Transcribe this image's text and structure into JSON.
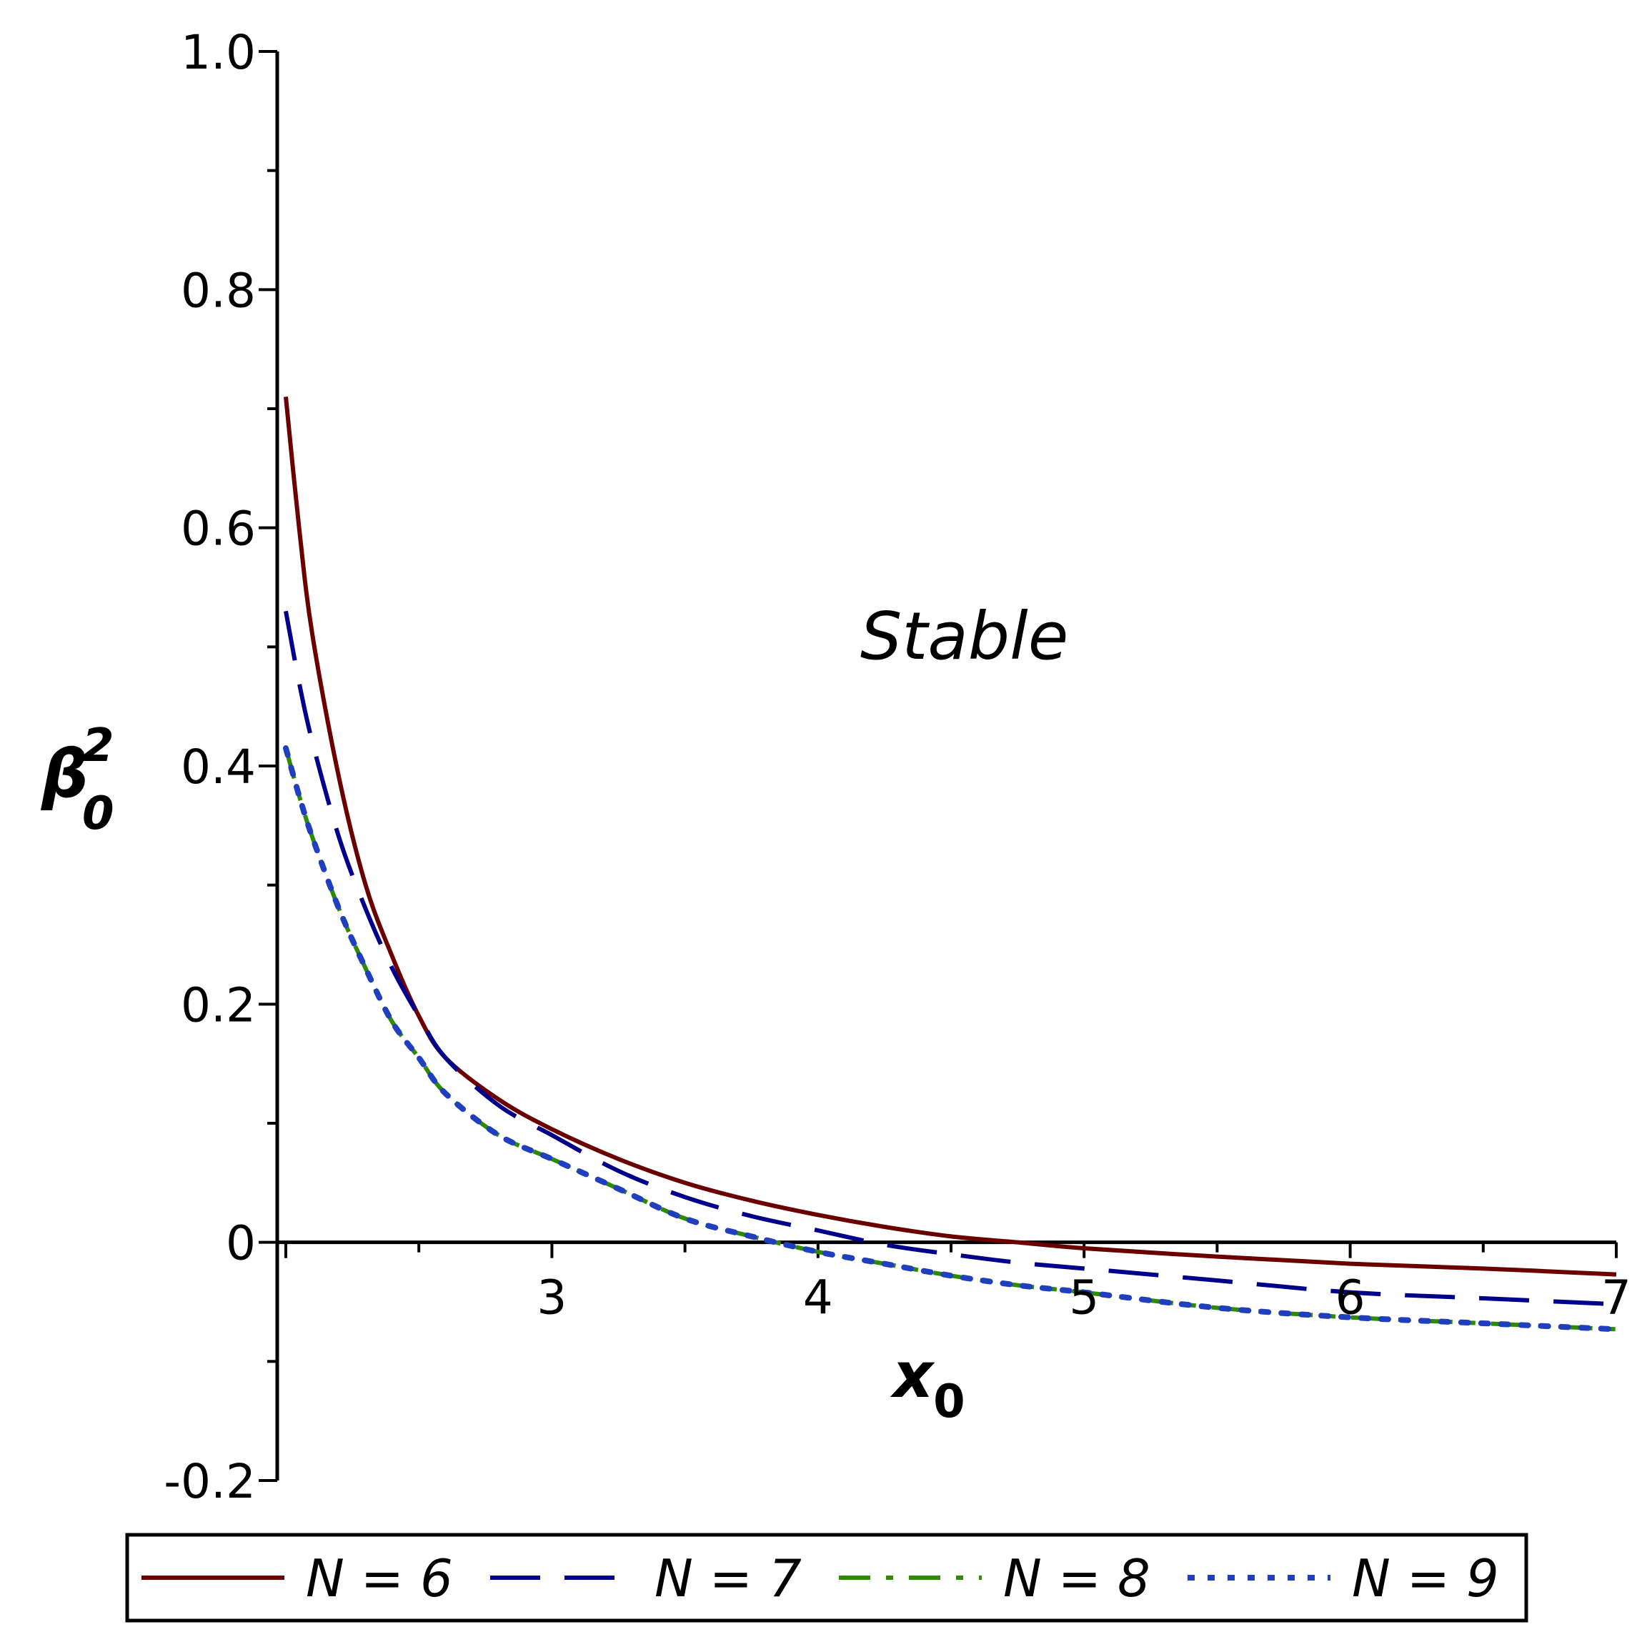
{
  "chart_data": {
    "type": "line",
    "title": "",
    "xlabel": "x",
    "xlabel_sub": "0",
    "ylabel": "β",
    "ylabel_sup": "2",
    "ylabel_sub": "0",
    "xlim": [
      2,
      7
    ],
    "ylim": [
      -0.2,
      1.0
    ],
    "xticks": [
      3,
      4,
      5,
      6,
      7
    ],
    "yticks": [
      -0.2,
      0,
      0.2,
      0.4,
      0.6,
      0.8,
      1.0
    ],
    "xtick_labels": [
      "3",
      "4",
      "5",
      "6",
      "7"
    ],
    "ytick_labels": [
      "-0.2",
      "0",
      "0.2",
      "0.4",
      "0.6",
      "0.8",
      "1.0"
    ],
    "grid": false,
    "legend_position": "bottom",
    "annotation": {
      "text": "Stable",
      "x": 4.55,
      "y": 0.49
    },
    "series": [
      {
        "name": "N = 6",
        "color": "#6b0000",
        "style": "solid",
        "x": [
          2.0,
          2.05,
          2.1,
          2.2,
          2.3,
          2.4,
          2.5,
          2.6,
          2.8,
          3.0,
          3.25,
          3.5,
          3.75,
          4.0,
          4.25,
          4.5,
          4.75,
          5.0,
          5.5,
          6.0,
          6.5,
          7.0
        ],
        "y": [
          0.71,
          0.6,
          0.51,
          0.39,
          0.3,
          0.24,
          0.19,
          0.155,
          0.12,
          0.095,
          0.07,
          0.05,
          0.035,
          0.023,
          0.013,
          0.005,
          0.0,
          -0.005,
          -0.012,
          -0.018,
          -0.022,
          -0.027
        ]
      },
      {
        "name": "N = 7",
        "color": "#00008b",
        "style": "dashed",
        "x": [
          2.0,
          2.05,
          2.1,
          2.2,
          2.3,
          2.4,
          2.5,
          2.6,
          2.8,
          3.0,
          3.25,
          3.5,
          3.75,
          4.0,
          4.25,
          4.5,
          4.75,
          5.0,
          5.5,
          6.0,
          6.5,
          7.0
        ],
        "y": [
          0.53,
          0.47,
          0.42,
          0.34,
          0.28,
          0.23,
          0.19,
          0.155,
          0.115,
          0.09,
          0.06,
          0.038,
          0.022,
          0.01,
          -0.002,
          -0.01,
          -0.017,
          -0.022,
          -0.032,
          -0.042,
          -0.047,
          -0.052
        ]
      },
      {
        "name": "N = 8",
        "color": "#2e8b00",
        "style": "dashdot",
        "x": [
          2.0,
          2.05,
          2.1,
          2.2,
          2.3,
          2.4,
          2.5,
          2.6,
          2.8,
          3.0,
          3.25,
          3.5,
          3.75,
          4.0,
          4.25,
          4.5,
          4.75,
          5.0,
          5.5,
          6.0,
          6.5,
          7.0
        ],
        "y": [
          0.415,
          0.375,
          0.34,
          0.28,
          0.23,
          0.185,
          0.155,
          0.125,
          0.09,
          0.07,
          0.045,
          0.02,
          0.005,
          -0.008,
          -0.018,
          -0.028,
          -0.036,
          -0.042,
          -0.055,
          -0.063,
          -0.068,
          -0.073
        ]
      },
      {
        "name": "N = 9",
        "color": "#1f3fbf",
        "style": "dotted",
        "x": [
          2.0,
          2.05,
          2.1,
          2.2,
          2.3,
          2.4,
          2.5,
          2.6,
          2.8,
          3.0,
          3.25,
          3.5,
          3.75,
          4.0,
          4.25,
          4.5,
          4.75,
          5.0,
          5.5,
          6.0,
          6.5,
          7.0
        ],
        "y": [
          0.415,
          0.375,
          0.34,
          0.28,
          0.23,
          0.185,
          0.155,
          0.125,
          0.09,
          0.07,
          0.045,
          0.02,
          0.005,
          -0.008,
          -0.018,
          -0.028,
          -0.036,
          -0.042,
          -0.055,
          -0.063,
          -0.068,
          -0.073
        ]
      }
    ]
  }
}
